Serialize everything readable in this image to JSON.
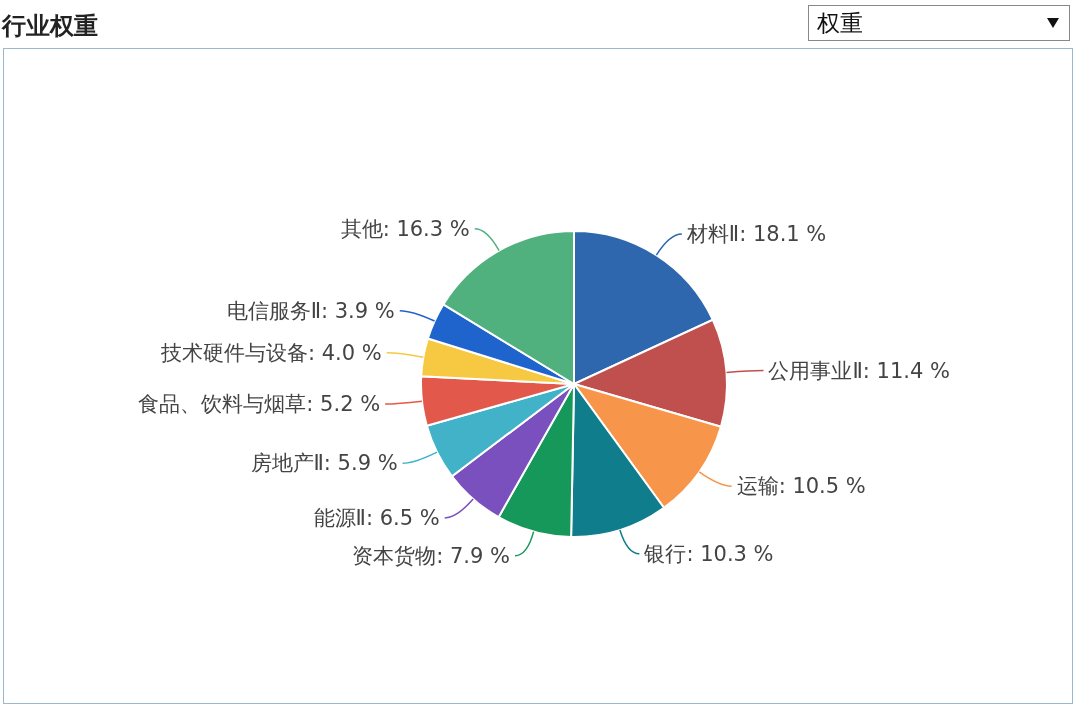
{
  "chart_data": {
    "type": "pie",
    "title": "行业权重",
    "annotations": [
      "权重"
    ],
    "categories": [
      "材料Ⅱ",
      "公用事业Ⅱ",
      "运输",
      "银行",
      "资本货物",
      "能源Ⅱ",
      "房地产Ⅱ",
      "食品、饮料与烟草",
      "技术硬件与设备",
      "电信服务Ⅱ",
      "其他"
    ],
    "values": [
      18.1,
      11.4,
      10.5,
      10.3,
      7.9,
      6.5,
      5.9,
      5.2,
      4.0,
      3.9,
      16.3
    ],
    "value_labels": [
      "18.1 %",
      "11.4 %",
      "10.5 %",
      "10.3 %",
      "7.9 %",
      "6.5 %",
      "5.9 %",
      "5.2 %",
      "4.0 %",
      "3.9 %",
      "16.3 %"
    ],
    "colors": [
      "#2e67ad",
      "#c0504d",
      "#f7964a",
      "#0f7d8c",
      "#16985a",
      "#7a4fbe",
      "#41b2c7",
      "#e2594c",
      "#f7c942",
      "#1f63cc",
      "#50b07e"
    ],
    "legend": false
  }
}
